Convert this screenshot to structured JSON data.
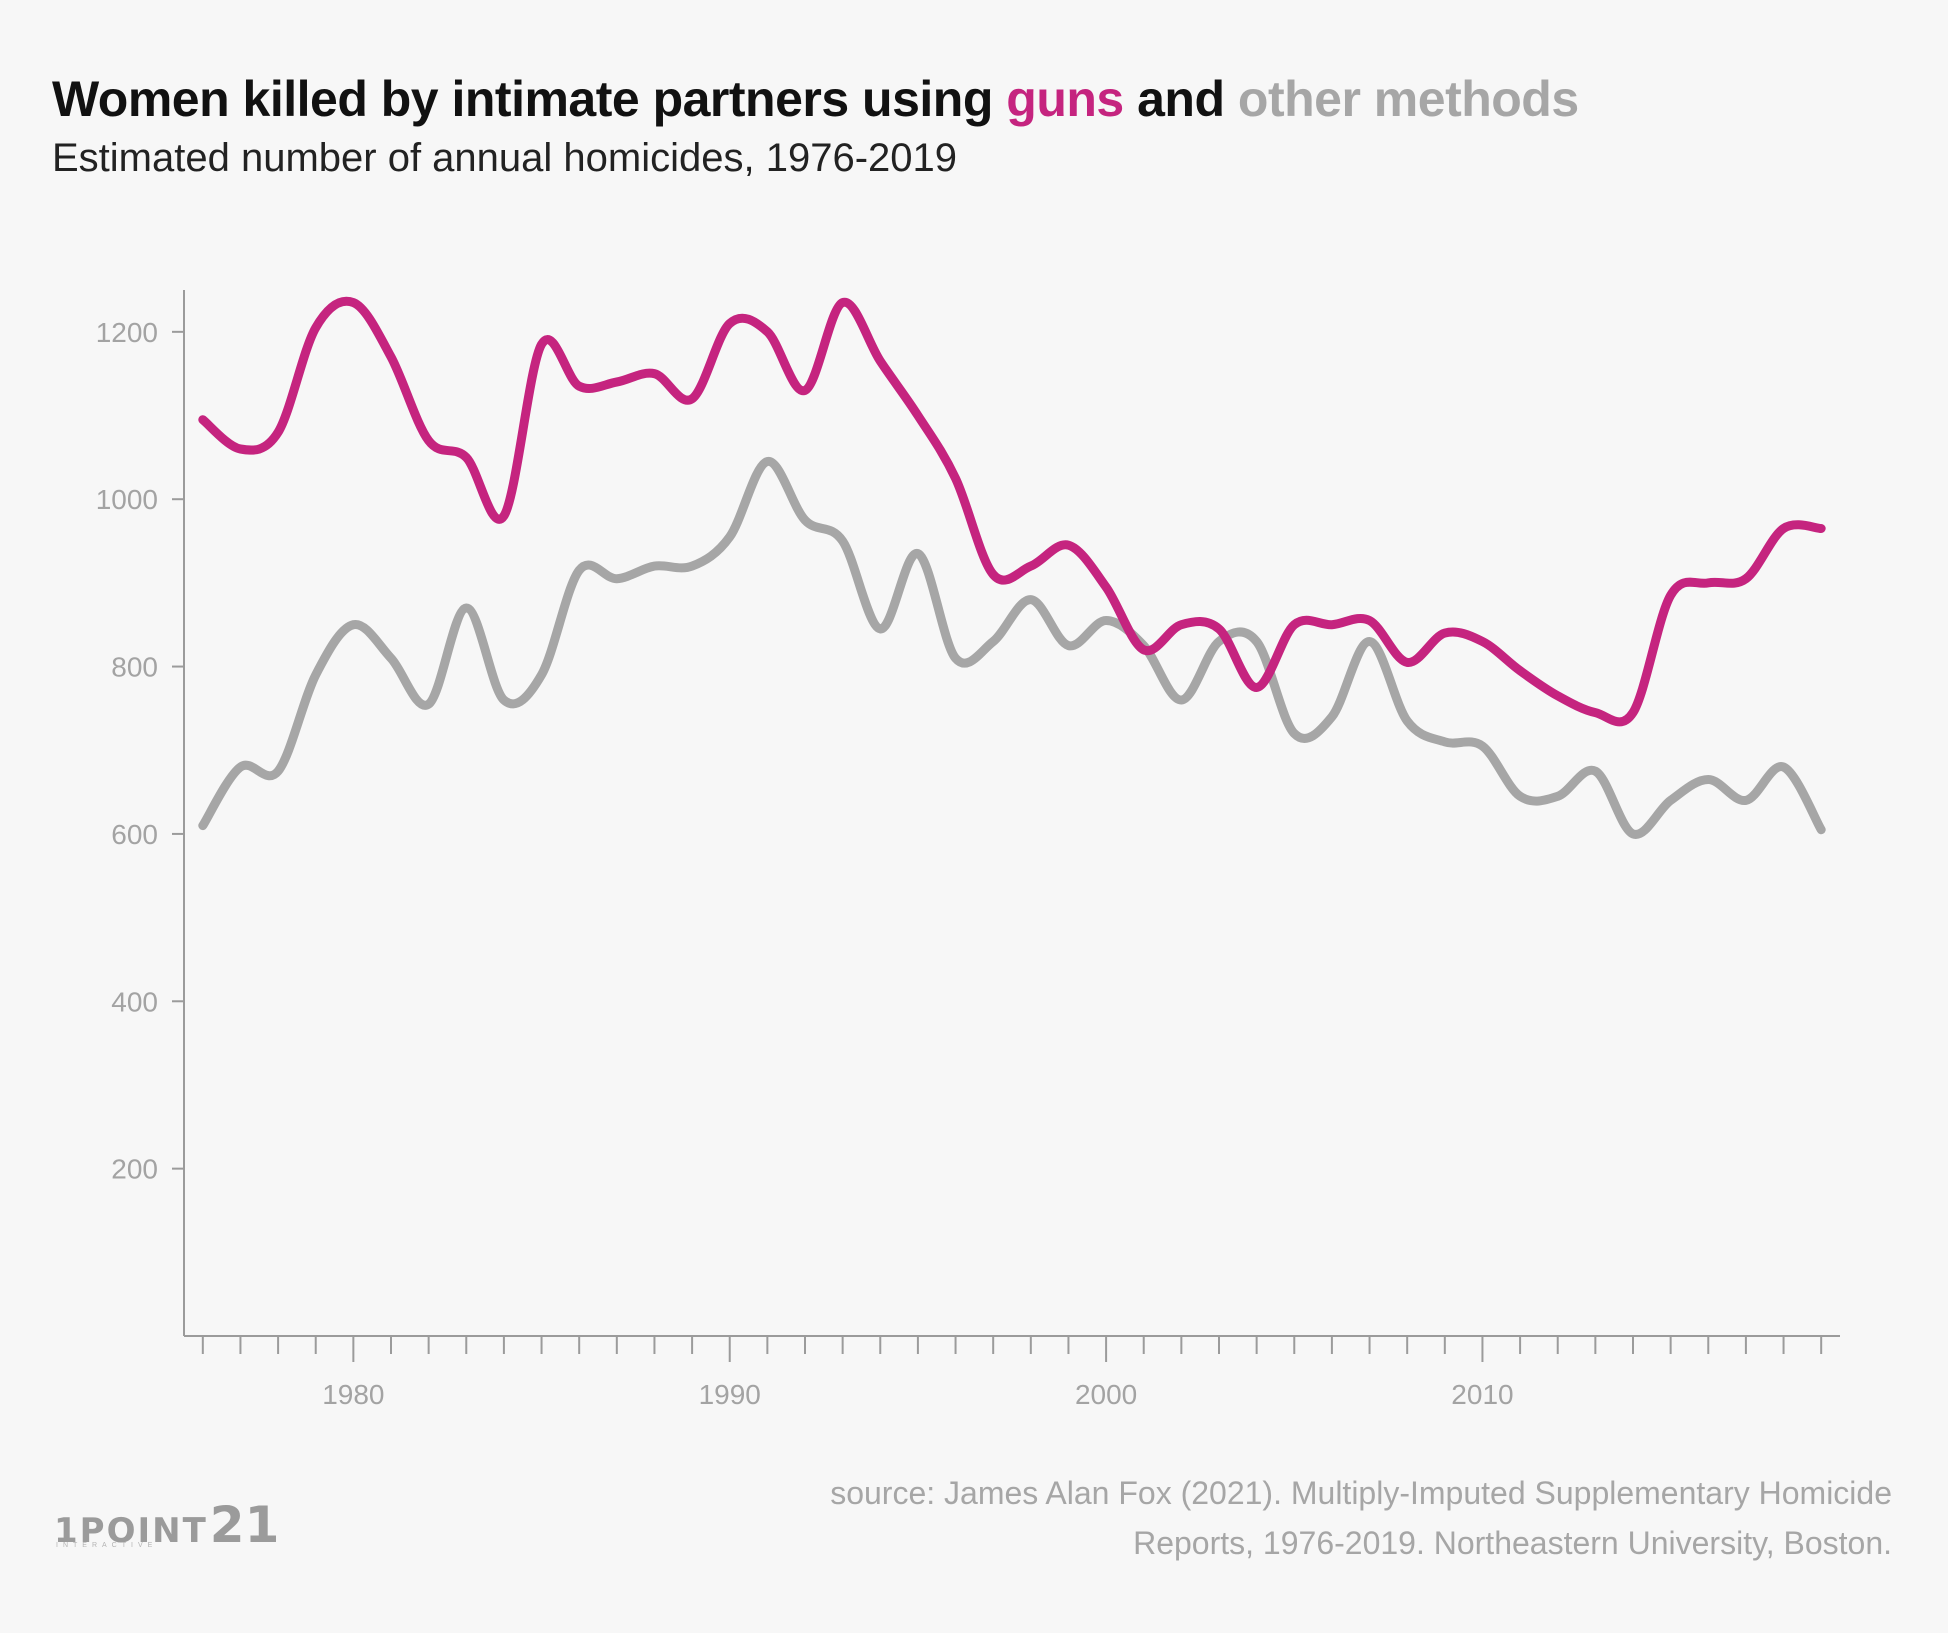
{
  "header": {
    "title_part1": "Women killed by intimate partners using ",
    "title_guns": "guns",
    "title_part2": " and ",
    "title_other": "other methods",
    "subtitle": "Estimated number of annual homicides, 1976-2019"
  },
  "colors": {
    "guns": "#c5247f",
    "other": "#a6a6a6",
    "axis": "#9b9b9b",
    "title": "#111111"
  },
  "chart_data": {
    "type": "line",
    "title": "Women killed by intimate partners using guns and other methods",
    "subtitle": "Estimated number of annual homicides, 1976-2019",
    "xlabel": "",
    "ylabel": "",
    "xlim": [
      1975.5,
      2019.5
    ],
    "ylim": [
      0,
      1250
    ],
    "x_ticks": [
      1980,
      1990,
      2000,
      2010
    ],
    "y_ticks": [
      200,
      400,
      600,
      800,
      1000,
      1200
    ],
    "grid": false,
    "legend": "colored words in title",
    "x": [
      1976,
      1977,
      1978,
      1979,
      1980,
      1981,
      1982,
      1983,
      1984,
      1985,
      1986,
      1987,
      1988,
      1989,
      1990,
      1991,
      1992,
      1993,
      1994,
      1995,
      1996,
      1997,
      1998,
      1999,
      2000,
      2001,
      2002,
      2003,
      2004,
      2005,
      2006,
      2007,
      2008,
      2009,
      2010,
      2011,
      2012,
      2013,
      2014,
      2015,
      2016,
      2017,
      2018,
      2019
    ],
    "series": [
      {
        "name": "guns",
        "color": "#c5247f",
        "values": [
          1095,
          1060,
          1080,
          1205,
          1235,
          1170,
          1070,
          1050,
          980,
          1185,
          1135,
          1140,
          1150,
          1120,
          1210,
          1200,
          1130,
          1235,
          1165,
          1100,
          1025,
          910,
          920,
          945,
          895,
          820,
          850,
          845,
          775,
          850,
          850,
          855,
          805,
          840,
          830,
          795,
          765,
          745,
          745,
          885,
          900,
          905,
          965,
          965
        ]
      },
      {
        "name": "other methods",
        "color": "#a6a6a6",
        "values": [
          610,
          680,
          675,
          790,
          850,
          810,
          755,
          870,
          760,
          790,
          915,
          905,
          920,
          920,
          955,
          1045,
          975,
          950,
          845,
          935,
          810,
          830,
          880,
          825,
          855,
          825,
          760,
          830,
          830,
          720,
          740,
          830,
          735,
          710,
          705,
          645,
          645,
          675,
          600,
          640,
          665,
          640,
          680,
          605
        ]
      }
    ]
  },
  "source": {
    "line1": "source: James Alan Fox (2021). Multiply-Imputed Supplementary Homicide",
    "line2": "Reports, 1976-2019. Northeastern University, Boston."
  },
  "logo": {
    "text": "1POINT",
    "number": "21",
    "tagline": "INTERACTIVE"
  }
}
